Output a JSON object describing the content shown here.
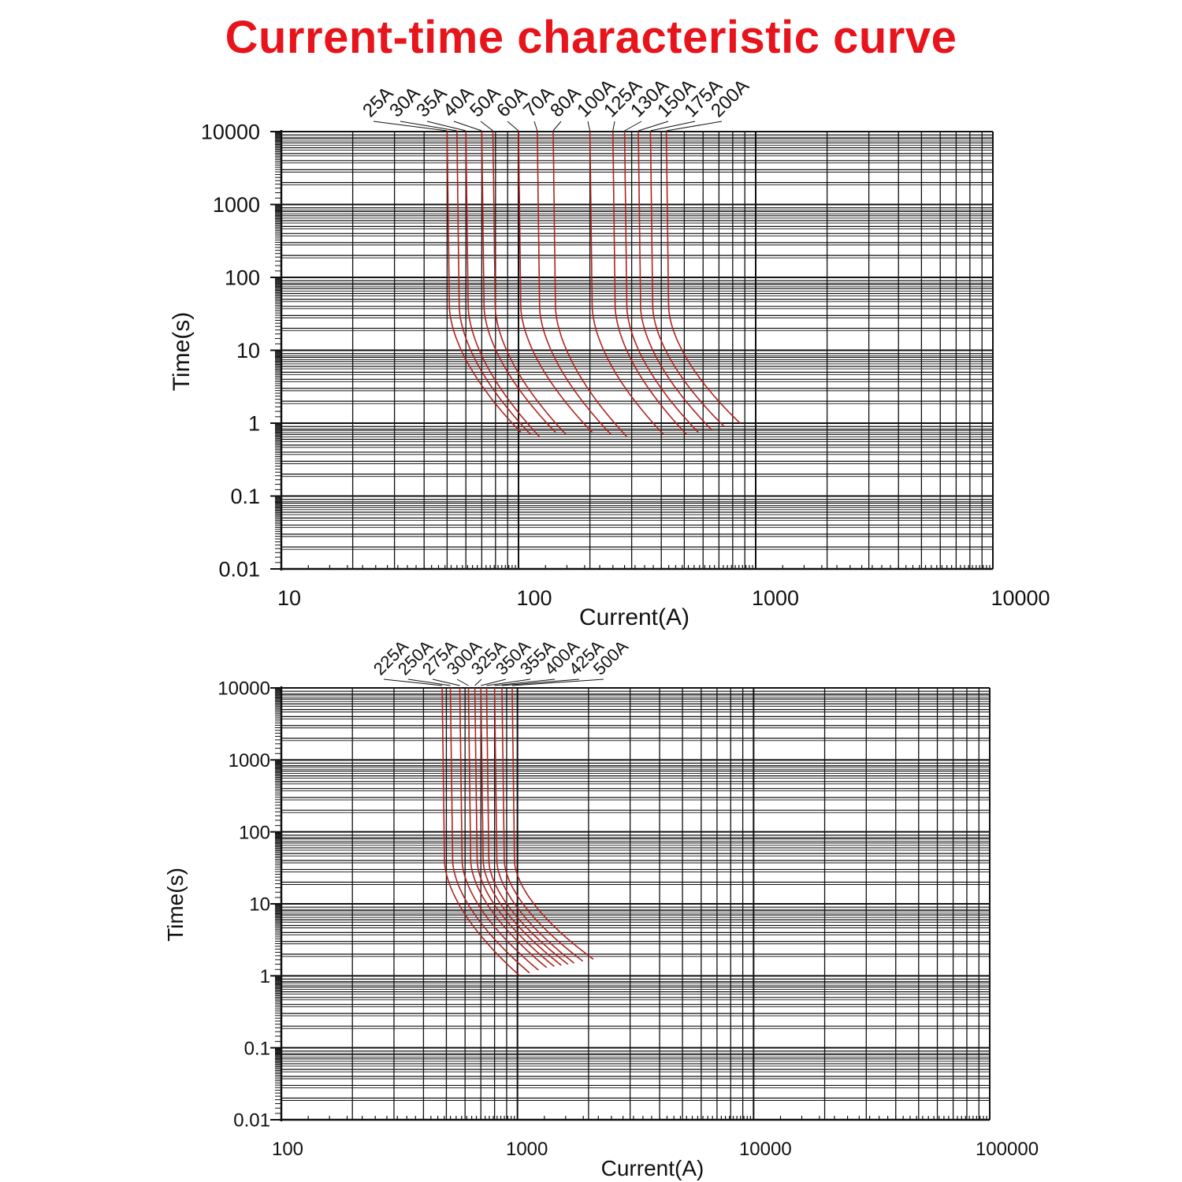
{
  "title": "Current-time characteristic curve",
  "colors": {
    "title": "#e8141b",
    "curve": "#b0231f",
    "grid": "#111111",
    "background": "#ffffff"
  },
  "chart_data": [
    {
      "type": "line",
      "xlabel": "Current(A)",
      "ylabel": "Time(s)",
      "xscale": "log",
      "yscale": "log",
      "xlim": [
        10,
        10000
      ],
      "ylim": [
        0.01,
        10000
      ],
      "xticks": [
        "10",
        "100",
        "1000",
        "10000"
      ],
      "yticks": [
        "10000",
        "1000",
        "100",
        "10",
        "1",
        "0.1",
        "0.01"
      ],
      "grid": true,
      "series": [
        {
          "name": "25A",
          "i_vertical": 50,
          "t_end": 0.75,
          "i_end": 100
        },
        {
          "name": "30A",
          "i_vertical": 55,
          "t_end": 0.7,
          "i_end": 110
        },
        {
          "name": "35A",
          "i_vertical": 60,
          "t_end": 0.65,
          "i_end": 120
        },
        {
          "name": "40A",
          "i_vertical": 70,
          "t_end": 0.75,
          "i_end": 140
        },
        {
          "name": "50A",
          "i_vertical": 78,
          "t_end": 0.7,
          "i_end": 155
        },
        {
          "name": "60A",
          "i_vertical": 100,
          "t_end": 0.75,
          "i_end": 200
        },
        {
          "name": "70A",
          "i_vertical": 120,
          "t_end": 0.7,
          "i_end": 240
        },
        {
          "name": "80A",
          "i_vertical": 140,
          "t_end": 0.65,
          "i_end": 280
        },
        {
          "name": "100A",
          "i_vertical": 200,
          "t_end": 0.7,
          "i_end": 400
        },
        {
          "name": "125A",
          "i_vertical": 250,
          "t_end": 0.7,
          "i_end": 500
        },
        {
          "name": "130A",
          "i_vertical": 280,
          "t_end": 0.75,
          "i_end": 560
        },
        {
          "name": "150A",
          "i_vertical": 320,
          "t_end": 0.8,
          "i_end": 640
        },
        {
          "name": "175A",
          "i_vertical": 360,
          "t_end": 0.9,
          "i_end": 720
        },
        {
          "name": "200A",
          "i_vertical": 420,
          "t_end": 1.0,
          "i_end": 840
        }
      ]
    },
    {
      "type": "line",
      "xlabel": "Current(A)",
      "ylabel": "Time(s)",
      "xscale": "log",
      "yscale": "log",
      "xlim": [
        100,
        100000
      ],
      "ylim": [
        0.01,
        10000
      ],
      "xticks": [
        "100",
        "1000",
        "10000",
        "100000"
      ],
      "yticks": [
        "10000",
        "1000",
        "100",
        "10",
        "1",
        "0.1",
        "0.01"
      ],
      "grid": true,
      "series": [
        {
          "name": "225A",
          "i_vertical": 480,
          "t_end": 1.0,
          "i_end": 1000
        },
        {
          "name": "250A",
          "i_vertical": 520,
          "t_end": 1.1,
          "i_end": 1100
        },
        {
          "name": "275A",
          "i_vertical": 570,
          "t_end": 1.2,
          "i_end": 1200
        },
        {
          "name": "300A",
          "i_vertical": 620,
          "t_end": 1.3,
          "i_end": 1300
        },
        {
          "name": "325A",
          "i_vertical": 660,
          "t_end": 1.35,
          "i_end": 1400
        },
        {
          "name": "350A",
          "i_vertical": 700,
          "t_end": 1.4,
          "i_end": 1500
        },
        {
          "name": "355A",
          "i_vertical": 740,
          "t_end": 1.45,
          "i_end": 1600
        },
        {
          "name": "400A",
          "i_vertical": 800,
          "t_end": 1.5,
          "i_end": 1700
        },
        {
          "name": "425A",
          "i_vertical": 860,
          "t_end": 1.6,
          "i_end": 1850
        },
        {
          "name": "500A",
          "i_vertical": 950,
          "t_end": 1.7,
          "i_end": 2050
        }
      ]
    }
  ]
}
